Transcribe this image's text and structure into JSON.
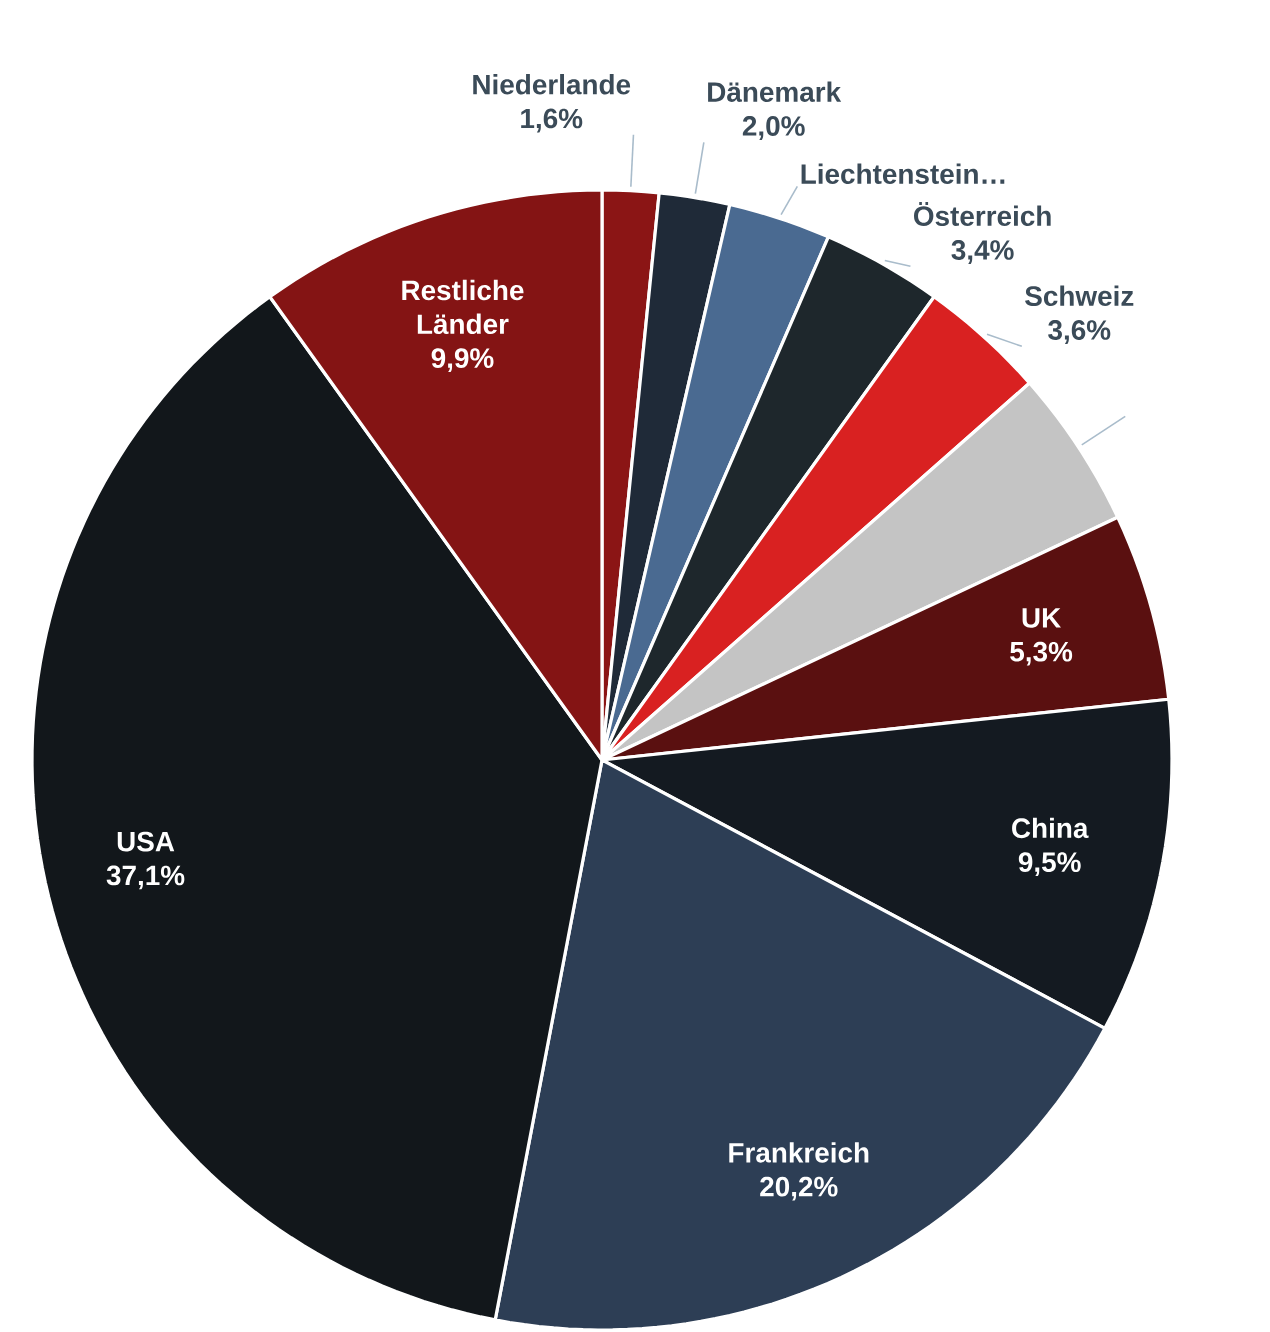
{
  "chart_data": {
    "type": "pie",
    "categories": [
      "Niederlande",
      "Dänemark",
      "Liechtenstein…",
      "Österreich",
      "Schweiz",
      null,
      "UK",
      "China",
      "Frankreich",
      "USA",
      "Restliche Länder"
    ],
    "values": [
      1.6,
      2.0,
      2.9,
      3.4,
      3.6,
      4.5,
      5.3,
      9.5,
      20.2,
      37.1,
      9.9
    ],
    "colors": [
      "#8b1515",
      "#1f2a38",
      "#4a6a91",
      "#1e272c",
      "#d92121",
      "#c4c4c4",
      "#5a1010",
      "#141a21",
      "#2d3e55",
      "#12171b",
      "#841414"
    ],
    "value_labels": [
      "1,6%",
      "2,0%",
      null,
      "3,4%",
      "3,6%",
      null,
      "5,3%",
      "9,5%",
      "20,2%",
      "37,1%",
      "9,9%"
    ]
  }
}
